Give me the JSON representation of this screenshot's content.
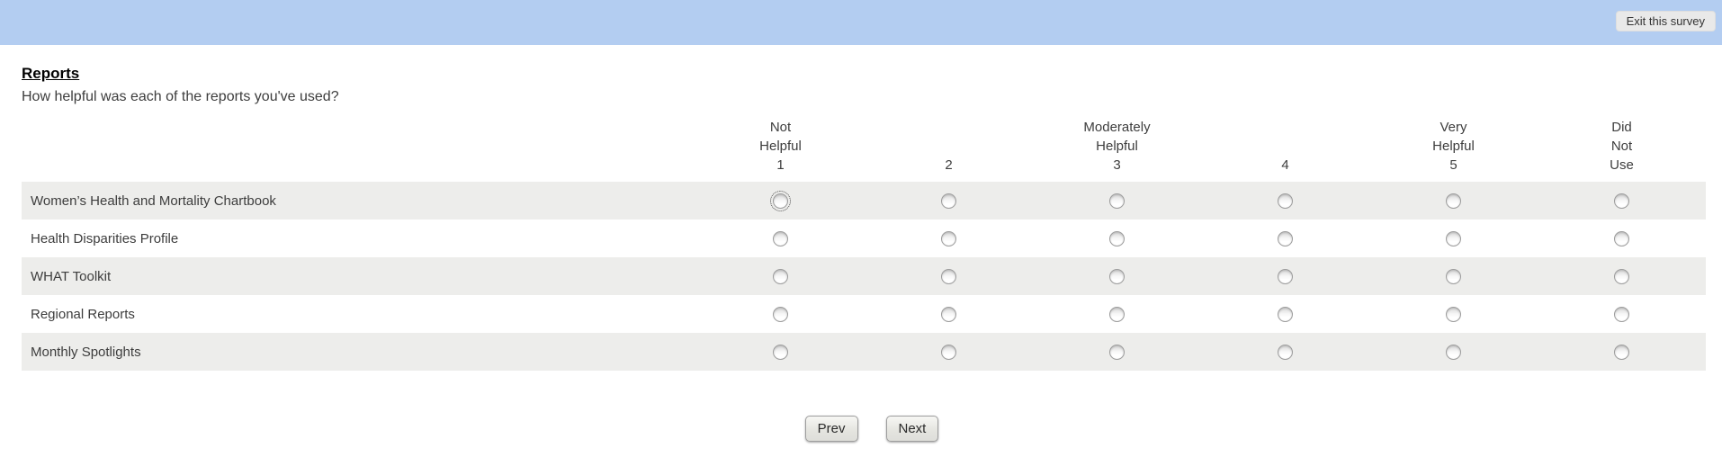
{
  "topbar": {
    "exit_button_label": "Exit this survey",
    "bar_color": "#b3cdf1"
  },
  "page": {
    "title": "Reports",
    "question": "How helpful was each of the reports you've used?"
  },
  "matrix": {
    "columns": [
      {
        "lines": [
          "Not",
          "Helpful",
          "1"
        ]
      },
      {
        "lines": [
          "2"
        ]
      },
      {
        "lines": [
          "Moderately",
          "Helpful",
          "3"
        ]
      },
      {
        "lines": [
          "4"
        ]
      },
      {
        "lines": [
          "Very",
          "Helpful",
          "5"
        ]
      },
      {
        "lines": [
          "Did",
          "Not",
          "Use"
        ]
      }
    ],
    "rows": [
      {
        "label": "Women’s Health and Mortality Chartbook"
      },
      {
        "label": "Health Disparities Profile"
      },
      {
        "label": "WHAT Toolkit"
      },
      {
        "label": "Regional Reports"
      },
      {
        "label": "Monthly Spotlights"
      }
    ],
    "stripe_color": "#ededeb",
    "focused_cell": {
      "row": 0,
      "col": 0
    },
    "selected": []
  },
  "footer": {
    "prev_label": "Prev",
    "next_label": "Next"
  }
}
